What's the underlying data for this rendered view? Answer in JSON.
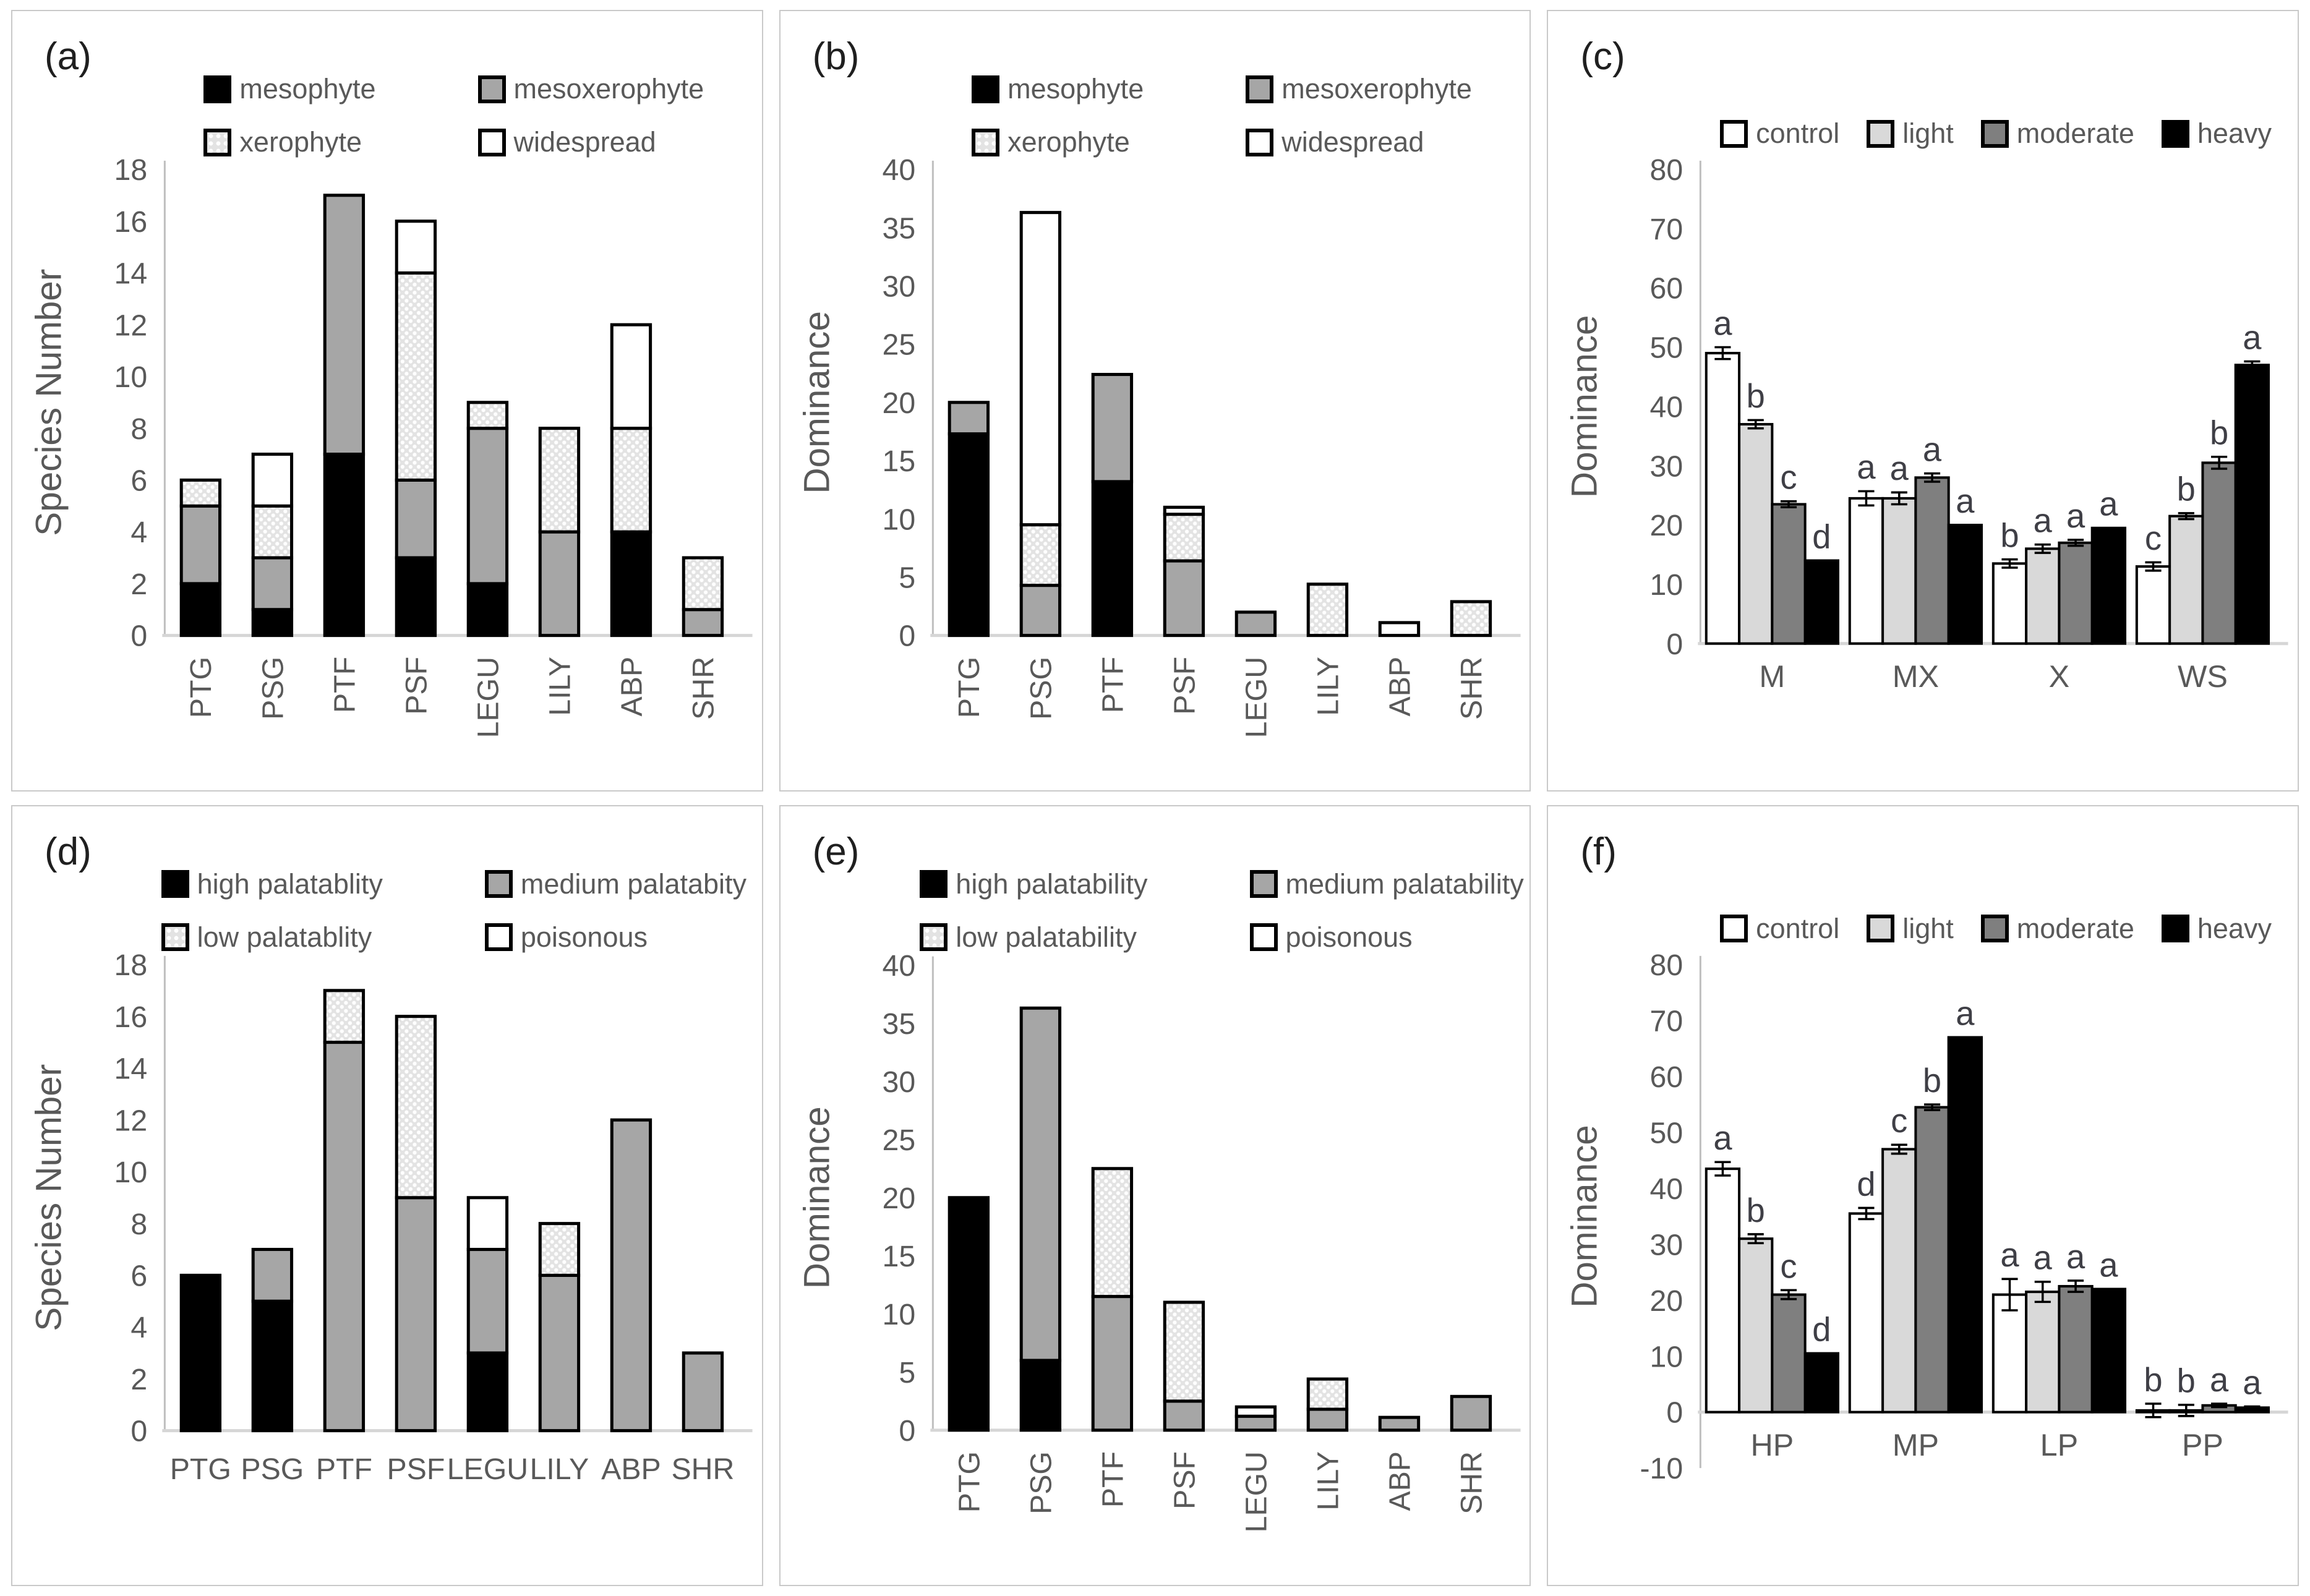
{
  "colors": {
    "black": "#000000",
    "gray": "#a6a6a6",
    "lightgray": "#d9d9d9",
    "darkgray": "#7f7f7f",
    "white": "#ffffff",
    "dotted_bg": "#e3e3e3",
    "axis_line": "#bfbfbf",
    "baseline": "#d6d6d6",
    "text": "#595959",
    "letter_text": "#3f3f46",
    "panel_border": "#c9c9c9"
  },
  "chart_data": [
    {
      "panel_label": "(a)",
      "type": "stacked-bar",
      "ylabel": "Species Number",
      "ylim": [
        0,
        18
      ],
      "ytick_step": 2,
      "grid": false,
      "legend_position": "top-2col",
      "x_labels_rotated": true,
      "categories": [
        "PTG",
        "PSG",
        "PTF",
        "PSF",
        "LEGU",
        "LILY",
        "ABP",
        "SHR"
      ],
      "series": [
        {
          "name": "mesophyte",
          "fill": "black",
          "values": [
            2,
            1,
            7,
            3,
            2,
            0,
            4,
            0
          ]
        },
        {
          "name": "mesoxerophyte",
          "fill": "gray",
          "values": [
            3,
            2,
            10,
            3,
            6,
            4,
            0,
            1
          ]
        },
        {
          "name": "xerophyte",
          "fill": "dotted",
          "values": [
            1,
            2,
            0,
            8,
            1,
            4,
            4,
            2
          ]
        },
        {
          "name": "widespread",
          "fill": "white",
          "values": [
            0,
            2,
            0,
            2,
            0,
            0,
            4,
            0
          ]
        }
      ]
    },
    {
      "panel_label": "(b)",
      "type": "stacked-bar",
      "ylabel": "Dominance",
      "ylim": [
        0,
        40
      ],
      "ytick_step": 5,
      "grid": false,
      "legend_position": "top-2col",
      "x_labels_rotated": true,
      "categories": [
        "PTG",
        "PSG",
        "PTF",
        "PSF",
        "LEGU",
        "LILY",
        "ABP",
        "SHR"
      ],
      "series": [
        {
          "name": "mesophyte",
          "fill": "black",
          "values": [
            17.3,
            0,
            13.2,
            0,
            0,
            0,
            0,
            0
          ]
        },
        {
          "name": "mesoxerophyte",
          "fill": "gray",
          "values": [
            2.7,
            4.3,
            9.2,
            6.4,
            2,
            0,
            0,
            0
          ]
        },
        {
          "name": "xerophyte",
          "fill": "dotted",
          "values": [
            0,
            5.2,
            0,
            4.0,
            0,
            4.4,
            0,
            2.9
          ]
        },
        {
          "name": "widespread",
          "fill": "white",
          "values": [
            0,
            26.8,
            0,
            0.6,
            0,
            0,
            1.1,
            0
          ]
        }
      ]
    },
    {
      "panel_label": "(c)",
      "type": "grouped-bar",
      "ylabel": "Dominance",
      "ylim": [
        0,
        80
      ],
      "ytick_step": 10,
      "grid": false,
      "legend_position": "top-row",
      "x_labels_rotated": false,
      "categories": [
        "M",
        "MX",
        "X",
        "WS"
      ],
      "series": [
        {
          "name": "control",
          "fill": "white",
          "values": [
            49,
            24.5,
            13.5,
            13
          ],
          "errors": [
            1.0,
            1.2,
            0.7,
            0.7
          ],
          "letters": [
            "a",
            "a",
            "b",
            "c"
          ]
        },
        {
          "name": "light",
          "fill": "lightgray",
          "values": [
            37,
            24.5,
            16,
            21.5
          ],
          "errors": [
            0.7,
            1.0,
            0.7,
            0.5
          ],
          "letters": [
            "b",
            "a",
            "a",
            "b"
          ]
        },
        {
          "name": "moderate",
          "fill": "darkgray",
          "values": [
            23.5,
            28,
            17,
            30.5
          ],
          "errors": [
            0.5,
            0.7,
            0.5,
            1.0
          ],
          "letters": [
            "c",
            "a",
            "a",
            "b"
          ]
        },
        {
          "name": "heavy",
          "fill": "black",
          "values": [
            14,
            20,
            19.5,
            47
          ],
          "errors": [
            0,
            0,
            0,
            0.6
          ],
          "letters": [
            "d",
            "a",
            "a",
            "a"
          ]
        }
      ]
    },
    {
      "panel_label": "(d)",
      "type": "stacked-bar",
      "ylabel": "Species Number",
      "ylim": [
        0,
        18
      ],
      "ytick_step": 2,
      "grid": false,
      "legend_position": "top-2col",
      "x_labels_rotated": false,
      "categories": [
        "PTG",
        "PSG",
        "PTF",
        "PSF",
        "LEGU",
        "LILY",
        "ABP",
        "SHR"
      ],
      "series": [
        {
          "name": "high palatablity",
          "fill": "black",
          "values": [
            6,
            5,
            0,
            0,
            3,
            0,
            0,
            0
          ]
        },
        {
          "name": "medium palatabity",
          "fill": "gray",
          "values": [
            0,
            2,
            15,
            9,
            4,
            6,
            12,
            3
          ]
        },
        {
          "name": "low palatablity",
          "fill": "dotted",
          "values": [
            0,
            0,
            2,
            7,
            0,
            2,
            0,
            0
          ]
        },
        {
          "name": "poisonous",
          "fill": "white",
          "values": [
            0,
            0,
            0,
            0,
            2,
            0,
            0,
            0
          ]
        }
      ]
    },
    {
      "panel_label": "(e)",
      "type": "stacked-bar",
      "ylabel": "Dominance",
      "ylim": [
        0,
        40
      ],
      "ytick_step": 5,
      "grid": false,
      "legend_position": "top-2col",
      "x_labels_rotated": true,
      "categories": [
        "PTG",
        "PSG",
        "PTF",
        "PSF",
        "LEGU",
        "LILY",
        "ABP",
        "SHR"
      ],
      "series": [
        {
          "name": "high palatability",
          "fill": "black",
          "values": [
            20,
            6,
            0,
            0,
            0,
            0,
            0,
            0
          ]
        },
        {
          "name": "medium palatability",
          "fill": "gray",
          "values": [
            0,
            30.3,
            11.5,
            2.5,
            1.2,
            1.8,
            1.1,
            2.9
          ]
        },
        {
          "name": "low palatability",
          "fill": "dotted",
          "values": [
            0,
            0,
            11,
            8.5,
            0,
            2.6,
            0,
            0
          ]
        },
        {
          "name": "poisonous",
          "fill": "white",
          "values": [
            0,
            0,
            0,
            0,
            0.8,
            0,
            0,
            0
          ]
        }
      ]
    },
    {
      "panel_label": "(f)",
      "type": "grouped-bar",
      "ylabel": "Dominance",
      "ylim": [
        -10,
        80
      ],
      "ytick_step": 10,
      "grid": false,
      "legend_position": "top-row",
      "x_labels_rotated": false,
      "categories": [
        "HP",
        "MP",
        "LP",
        "PP"
      ],
      "series": [
        {
          "name": "control",
          "fill": "white",
          "values": [
            43.5,
            35.5,
            21,
            0.3
          ],
          "errors": [
            1.2,
            1.0,
            2.8,
            1.2
          ],
          "letters": [
            "a",
            "d",
            "a",
            "b"
          ]
        },
        {
          "name": "light",
          "fill": "lightgray",
          "values": [
            31,
            47,
            21.5,
            0.3
          ],
          "errors": [
            0.8,
            0.8,
            1.8,
            1.0
          ],
          "letters": [
            "b",
            "c",
            "a",
            "b"
          ]
        },
        {
          "name": "moderate",
          "fill": "darkgray",
          "values": [
            21,
            54.5,
            22.5,
            1.2
          ],
          "errors": [
            0.8,
            0.5,
            1.0,
            0.3
          ],
          "letters": [
            "c",
            "b",
            "a",
            "a"
          ]
        },
        {
          "name": "heavy",
          "fill": "black",
          "values": [
            10.5,
            67,
            22,
            0.8
          ],
          "errors": [
            0,
            0,
            0,
            0.2
          ],
          "letters": [
            "d",
            "a",
            "a",
            "a"
          ]
        }
      ]
    }
  ]
}
